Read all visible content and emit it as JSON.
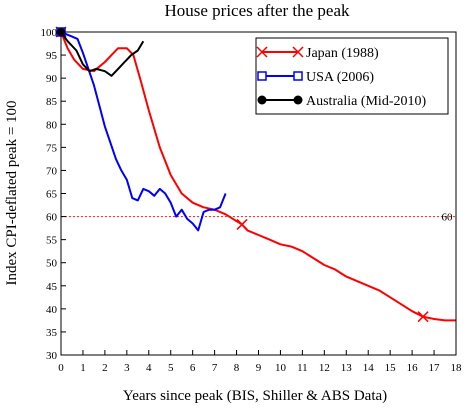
{
  "chart_data": {
    "type": "line",
    "title": "House prices after the peak",
    "xlabel": "Years since peak (BIS, Shiller & ABS Data)",
    "ylabel": "Index CPI-deflated peak = 100",
    "xlim": [
      0,
      18
    ],
    "ylim": [
      30,
      100
    ],
    "xticks": [
      "0",
      "1",
      "2",
      "3",
      "4",
      "5",
      "6",
      "7",
      "8",
      "9",
      "10",
      "11",
      "12",
      "13",
      "14",
      "15",
      "16",
      "17",
      "18"
    ],
    "yticks": [
      "30",
      "35",
      "40",
      "45",
      "50",
      "55",
      "60",
      "65",
      "70",
      "75",
      "80",
      "85",
      "90",
      "95",
      "100"
    ],
    "grid": false,
    "legend_position": "top-right",
    "reference_line": {
      "y": 60,
      "label": "60",
      "color": "#e8231f",
      "style": "dotted"
    },
    "series": [
      {
        "name": "Japan (1988)",
        "color": "#ff0000",
        "marker": "x",
        "marker_points": [
          [
            0,
            100
          ],
          [
            8.25,
            58.3
          ],
          [
            16.5,
            38.3
          ]
        ],
        "points": [
          [
            0,
            100
          ],
          [
            0.3,
            96.5
          ],
          [
            0.6,
            94
          ],
          [
            1,
            92
          ],
          [
            1.5,
            91.5
          ],
          [
            2,
            93.5
          ],
          [
            2.3,
            95
          ],
          [
            2.6,
            96.5
          ],
          [
            3,
            96.5
          ],
          [
            3.3,
            95
          ],
          [
            3.6,
            90
          ],
          [
            4,
            83
          ],
          [
            4.5,
            75
          ],
          [
            5,
            69
          ],
          [
            5.5,
            65
          ],
          [
            6,
            63
          ],
          [
            6.5,
            62
          ],
          [
            7,
            61.5
          ],
          [
            7.5,
            60.5
          ],
          [
            8,
            59
          ],
          [
            8.25,
            58.3
          ],
          [
            8.5,
            57
          ],
          [
            9,
            56
          ],
          [
            9.5,
            55
          ],
          [
            10,
            54
          ],
          [
            10.5,
            53.5
          ],
          [
            11,
            52.5
          ],
          [
            11.5,
            51
          ],
          [
            12,
            49.5
          ],
          [
            12.5,
            48.5
          ],
          [
            13,
            47
          ],
          [
            13.5,
            46
          ],
          [
            14,
            45
          ],
          [
            14.5,
            44
          ],
          [
            15,
            42.5
          ],
          [
            15.5,
            41
          ],
          [
            16,
            39.5
          ],
          [
            16.5,
            38.3
          ],
          [
            17,
            37.8
          ],
          [
            17.5,
            37.5
          ],
          [
            18,
            37.5
          ]
        ]
      },
      {
        "name": "USA (2006)",
        "color": "#0000ff",
        "marker": "square",
        "marker_points": [
          [
            0,
            100
          ]
        ],
        "points": [
          [
            0,
            100
          ],
          [
            0.25,
            99.5
          ],
          [
            0.5,
            99
          ],
          [
            0.75,
            98.5
          ],
          [
            1,
            95.5
          ],
          [
            1.25,
            92
          ],
          [
            1.5,
            88.5
          ],
          [
            1.75,
            84
          ],
          [
            2,
            79.5
          ],
          [
            2.25,
            76
          ],
          [
            2.5,
            72.5
          ],
          [
            2.75,
            70
          ],
          [
            3,
            68
          ],
          [
            3.25,
            64
          ],
          [
            3.5,
            63.5
          ],
          [
            3.75,
            66
          ],
          [
            4,
            65.5
          ],
          [
            4.25,
            64.5
          ],
          [
            4.5,
            66
          ],
          [
            4.75,
            65
          ],
          [
            5,
            63
          ],
          [
            5.25,
            60
          ],
          [
            5.5,
            61.5
          ],
          [
            5.75,
            59.5
          ],
          [
            6,
            58.5
          ],
          [
            6.25,
            57
          ],
          [
            6.5,
            61
          ],
          [
            6.75,
            61.5
          ],
          [
            7,
            61.5
          ],
          [
            7.25,
            62
          ],
          [
            7.5,
            65
          ]
        ]
      },
      {
        "name": "Australia (Mid-2010)",
        "color": "#000000",
        "marker": "circle",
        "marker_points": [
          [
            0,
            100
          ]
        ],
        "points": [
          [
            0,
            100
          ],
          [
            0.3,
            98
          ],
          [
            0.7,
            96
          ],
          [
            1,
            93
          ],
          [
            1.3,
            91.5
          ],
          [
            1.6,
            92
          ],
          [
            2,
            91.5
          ],
          [
            2.3,
            90.5
          ],
          [
            2.6,
            92
          ],
          [
            2.9,
            93.5
          ],
          [
            3.2,
            95
          ],
          [
            3.5,
            96
          ],
          [
            3.75,
            98
          ]
        ]
      }
    ]
  }
}
